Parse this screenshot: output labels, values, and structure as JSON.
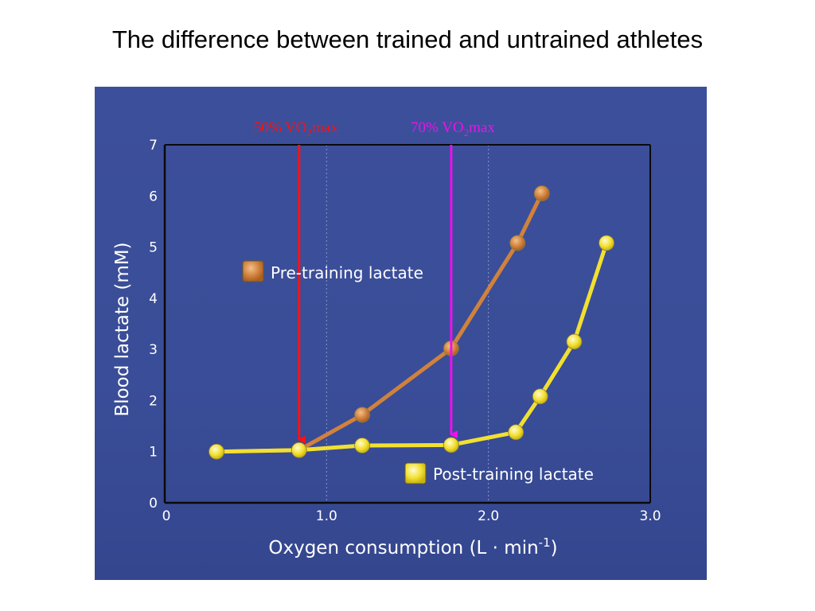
{
  "slide": {
    "title": "The difference between trained and untrained athletes"
  },
  "colors": {
    "panel_bg": "#3b4e99",
    "pre_training": "#d0823c",
    "post_training": "#f2e030",
    "arrow_50": "#ff1010",
    "arrow_70": "#ee10ee",
    "axis": "#0a0a0a",
    "grid": "#8a95c8"
  },
  "chart_data": {
    "type": "line",
    "xlabel": "Oxygen consumption (L · min",
    "xlabel_sup": "-1",
    "xlabel_end": ")",
    "ylabel": "Blood lactate (mM)",
    "xlim": [
      0,
      3.0
    ],
    "ylim": [
      0,
      7
    ],
    "x_ticks": [
      {
        "value": 0,
        "label": "0"
      },
      {
        "value": 1.0,
        "label": "1.0"
      },
      {
        "value": 2.0,
        "label": "2.0"
      },
      {
        "value": 3.0,
        "label": "3.0"
      }
    ],
    "y_ticks": [
      {
        "value": 0,
        "label": "0"
      },
      {
        "value": 1,
        "label": "1"
      },
      {
        "value": 2,
        "label": "2"
      },
      {
        "value": 3,
        "label": "3"
      },
      {
        "value": 4,
        "label": "4"
      },
      {
        "value": 5,
        "label": "5"
      },
      {
        "value": 6,
        "label": "6"
      },
      {
        "value": 7,
        "label": "7"
      }
    ],
    "grid": true,
    "series": [
      {
        "name": "Pre-training lactate",
        "color": "#d0823c",
        "points": [
          [
            0.32,
            1.0
          ],
          [
            0.83,
            1.03
          ],
          [
            1.22,
            1.72
          ],
          [
            1.77,
            3.02
          ],
          [
            2.18,
            5.08
          ],
          [
            2.33,
            6.05
          ]
        ]
      },
      {
        "name": "Post-training lactate",
        "color": "#f2e030",
        "points": [
          [
            0.32,
            1.0
          ],
          [
            0.83,
            1.03
          ],
          [
            1.22,
            1.12
          ],
          [
            1.77,
            1.13
          ],
          [
            2.17,
            1.38
          ],
          [
            2.32,
            2.08
          ],
          [
            2.53,
            3.15
          ],
          [
            2.73,
            5.08
          ]
        ]
      }
    ],
    "legend": [
      {
        "label": "Pre-training lactate",
        "color": "#d0823c",
        "placement": "upper-left"
      },
      {
        "label": "Post-training lactate",
        "color": "#f2e030",
        "placement": "lower-right"
      }
    ],
    "annotations": [
      {
        "label_main": "50% VO",
        "label_sub": "2",
        "label_end": "max",
        "x": 0.83,
        "y_from": 7,
        "y_to": 1.05,
        "color": "#ff1010"
      },
      {
        "label_main": "70% VO",
        "label_sub": "2",
        "label_end": "max",
        "x": 1.77,
        "y_from": 7,
        "y_to": 1.15,
        "color": "#ee10ee"
      }
    ]
  }
}
